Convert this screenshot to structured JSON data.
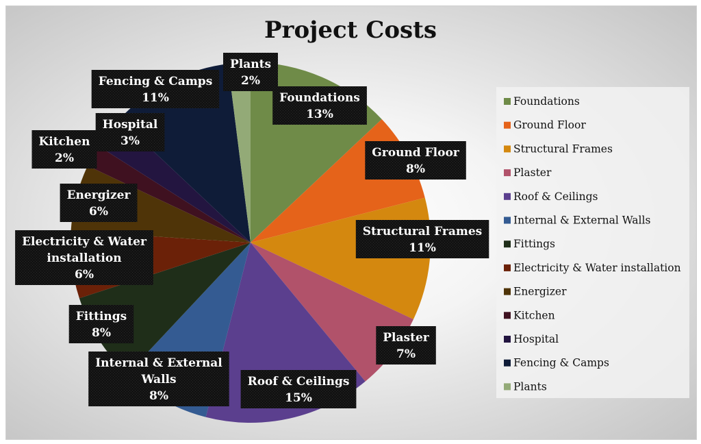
{
  "chart_data": {
    "type": "pie",
    "title": "Project Costs",
    "legend_position": "right",
    "categories": [
      "Foundations",
      "Ground Floor",
      "Structural Frames",
      "Plaster",
      "Roof & Ceilings",
      "Internal & External Walls",
      "Fittings",
      "Electricity & Water installation",
      "Energizer",
      "Kitchen",
      "Hospital",
      "Fencing & Camps",
      "Plants"
    ],
    "values": [
      13,
      8,
      11,
      7,
      15,
      8,
      8,
      6,
      6,
      2,
      3,
      11,
      2
    ],
    "colors": [
      "#6f8b48",
      "#e5631a",
      "#d4880f",
      "#b1526a",
      "#5b3f8e",
      "#345b92",
      "#1f2e19",
      "#6b2108",
      "#4f3408",
      "#3f1120",
      "#231540",
      "#0f1c38",
      "#93aa77"
    ],
    "data_labels": [
      {
        "lines": [
          "Foundations",
          "13%"
        ]
      },
      {
        "lines": [
          "Ground Floor",
          "8%"
        ]
      },
      {
        "lines": [
          "Structural Frames",
          "11%"
        ]
      },
      {
        "lines": [
          "Plaster",
          "7%"
        ]
      },
      {
        "lines": [
          "Roof & Ceilings",
          "15%"
        ]
      },
      {
        "lines": [
          "Internal & External",
          "Walls",
          "8%"
        ]
      },
      {
        "lines": [
          "Fittings",
          "8%"
        ]
      },
      {
        "lines": [
          "Electricity & Water",
          "installation",
          "6%"
        ]
      },
      {
        "lines": [
          "Energizer",
          "6%"
        ]
      },
      {
        "lines": [
          "Kitchen",
          "2%"
        ]
      },
      {
        "lines": [
          "Hospital",
          "3%"
        ]
      },
      {
        "lines": [
          "Fencing & Camps",
          "11%"
        ]
      },
      {
        "lines": [
          "Plants",
          "2%"
        ]
      }
    ]
  }
}
